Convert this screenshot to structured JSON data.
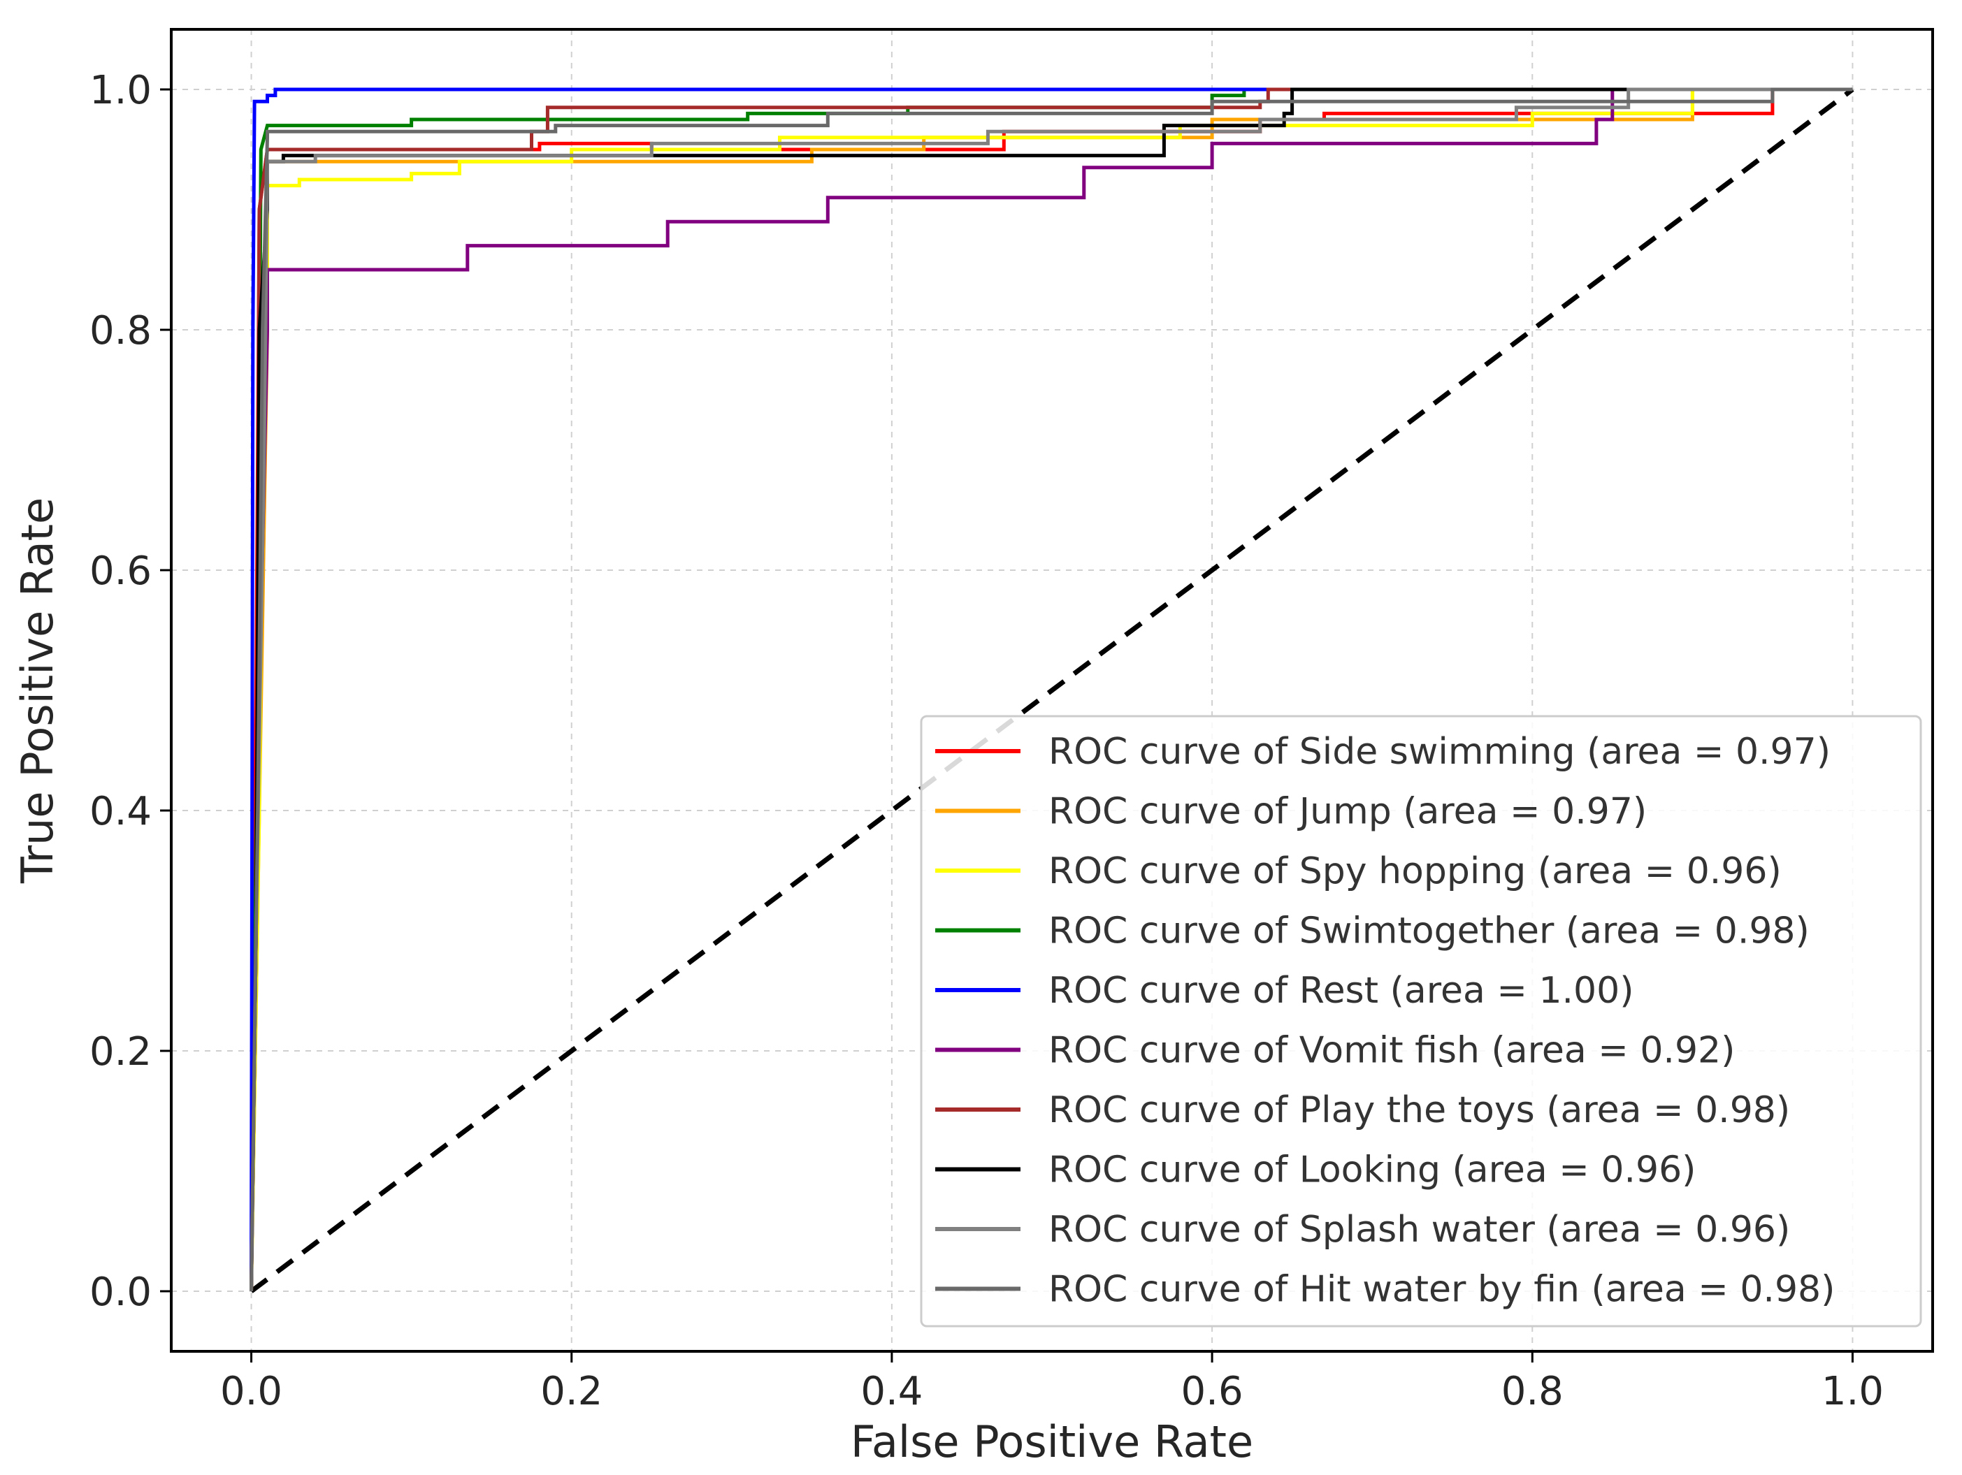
{
  "chart_data": {
    "type": "line",
    "xlabel": "False Positive Rate",
    "ylabel": "True Positive Rate",
    "xlim": [
      -0.05,
      1.05
    ],
    "ylim": [
      -0.05,
      1.05
    ],
    "xticks": [
      0.0,
      0.2,
      0.4,
      0.6,
      0.8,
      1.0
    ],
    "xtick_labels": [
      "0.0",
      "0.2",
      "0.4",
      "0.6",
      "0.8",
      "1.0"
    ],
    "yticks": [
      0.0,
      0.2,
      0.4,
      0.6,
      0.8,
      1.0
    ],
    "ytick_labels": [
      "0.0",
      "0.2",
      "0.4",
      "0.6",
      "0.8",
      "1.0"
    ],
    "grid": true,
    "legend_position": "lower-right",
    "diagonal": {
      "x": [
        0,
        1
      ],
      "y": [
        0,
        1
      ],
      "color": "#000000",
      "style": "dashed"
    },
    "series": [
      {
        "name": "ROC curve of Side swimming (area = 0.97)",
        "color": "#ff0000",
        "x": [
          0,
          0.003,
          0.005,
          0.01,
          0.18,
          0.18,
          0.25,
          0.25,
          0.47,
          0.47,
          0.63,
          0.63,
          0.67,
          0.67,
          0.95,
          0.95,
          1.0
        ],
        "y": [
          0,
          0.5,
          0.9,
          0.95,
          0.95,
          0.955,
          0.955,
          0.95,
          0.95,
          0.965,
          0.965,
          0.975,
          0.975,
          0.98,
          0.98,
          1.0,
          1.0
        ]
      },
      {
        "name": "ROC curve of Jump (area = 0.97)",
        "color": "#ffa500",
        "x": [
          0,
          0.005,
          0.01,
          0.01,
          0.35,
          0.35,
          0.42,
          0.42,
          0.6,
          0.6,
          0.9,
          0.9,
          1.0
        ],
        "y": [
          0,
          0.4,
          0.8,
          0.94,
          0.94,
          0.95,
          0.95,
          0.96,
          0.96,
          0.975,
          0.975,
          1.0,
          1.0
        ]
      },
      {
        "name": "ROC curve of Spy hopping (area = 0.96)",
        "color": "#ffff00",
        "x": [
          0,
          0.005,
          0.008,
          0.01,
          0.01,
          0.03,
          0.03,
          0.1,
          0.1,
          0.13,
          0.13,
          0.2,
          0.2,
          0.33,
          0.33,
          0.58,
          0.58,
          0.8,
          0.8,
          0.9,
          0.9,
          1.0
        ],
        "y": [
          0,
          0.4,
          0.8,
          0.85,
          0.92,
          0.92,
          0.925,
          0.925,
          0.93,
          0.93,
          0.94,
          0.94,
          0.95,
          0.95,
          0.96,
          0.96,
          0.97,
          0.97,
          0.98,
          0.98,
          1.0,
          1.0
        ]
      },
      {
        "name": "ROC curve of Swimtogether (area = 0.98)",
        "color": "#008000",
        "x": [
          0,
          0.004,
          0.006,
          0.01,
          0.04,
          0.04,
          0.1,
          0.1,
          0.31,
          0.31,
          0.41,
          0.41,
          0.6,
          0.6,
          0.62,
          0.62,
          1.0
        ],
        "y": [
          0,
          0.5,
          0.95,
          0.97,
          0.97,
          0.97,
          0.97,
          0.975,
          0.975,
          0.98,
          0.98,
          0.985,
          0.985,
          0.995,
          0.995,
          1.0,
          1.0
        ]
      },
      {
        "name": "ROC curve of Rest (area = 1.00)",
        "color": "#0000ff",
        "x": [
          0,
          0.001,
          0.002,
          0.01,
          0.01,
          0.015,
          0.015,
          1.0
        ],
        "y": [
          0,
          0.8,
          0.99,
          0.99,
          0.995,
          0.995,
          1.0,
          1.0
        ]
      },
      {
        "name": "ROC curve of Vomit fish (area = 0.92)",
        "color": "#800080",
        "x": [
          0,
          0.005,
          0.01,
          0.01,
          0.135,
          0.135,
          0.26,
          0.26,
          0.36,
          0.36,
          0.52,
          0.52,
          0.6,
          0.6,
          0.84,
          0.84,
          0.85,
          0.85,
          1.0
        ],
        "y": [
          0,
          0.5,
          0.8,
          0.85,
          0.85,
          0.87,
          0.87,
          0.89,
          0.89,
          0.91,
          0.91,
          0.935,
          0.935,
          0.955,
          0.955,
          0.975,
          0.975,
          1.0,
          1.0
        ]
      },
      {
        "name": "ROC curve of Play the toys (area = 0.98)",
        "color": "#a52a2a",
        "x": [
          0,
          0.003,
          0.005,
          0.01,
          0.175,
          0.175,
          0.185,
          0.185,
          0.63,
          0.63,
          0.635,
          0.635,
          1.0
        ],
        "y": [
          0,
          0.3,
          0.9,
          0.95,
          0.95,
          0.965,
          0.965,
          0.985,
          0.985,
          0.99,
          0.99,
          1.0,
          1.0
        ]
      },
      {
        "name": "ROC curve of Looking (area = 0.96)",
        "color": "#000000",
        "x": [
          0,
          0.003,
          0.005,
          0.01,
          0.01,
          0.02,
          0.02,
          0.57,
          0.57,
          0.645,
          0.645,
          0.65,
          0.65,
          1.0
        ],
        "y": [
          0,
          0.3,
          0.8,
          0.9,
          0.94,
          0.94,
          0.945,
          0.945,
          0.97,
          0.97,
          0.98,
          0.98,
          1.0,
          1.0
        ]
      },
      {
        "name": "ROC curve of Splash water (area = 0.96)",
        "color": "#808080",
        "x": [
          0,
          0.003,
          0.008,
          0.01,
          0.01,
          0.04,
          0.04,
          0.25,
          0.25,
          0.46,
          0.46,
          0.63,
          0.63,
          0.79,
          0.79,
          0.86,
          0.86,
          1.0
        ],
        "y": [
          0,
          0.3,
          0.7,
          0.93,
          0.94,
          0.94,
          0.945,
          0.945,
          0.955,
          0.955,
          0.965,
          0.965,
          0.975,
          0.975,
          0.985,
          0.985,
          1.0,
          1.0
        ]
      },
      {
        "name": "ROC curve of Hit water by fin (area = 0.98)",
        "color": "#696969",
        "x": [
          0,
          0.004,
          0.007,
          0.01,
          0.01,
          0.19,
          0.19,
          0.36,
          0.36,
          0.6,
          0.6,
          0.95,
          0.95,
          1.0
        ],
        "y": [
          0,
          0.4,
          0.8,
          0.96,
          0.965,
          0.965,
          0.97,
          0.97,
          0.98,
          0.98,
          0.99,
          0.99,
          1.0,
          1.0
        ]
      }
    ]
  }
}
